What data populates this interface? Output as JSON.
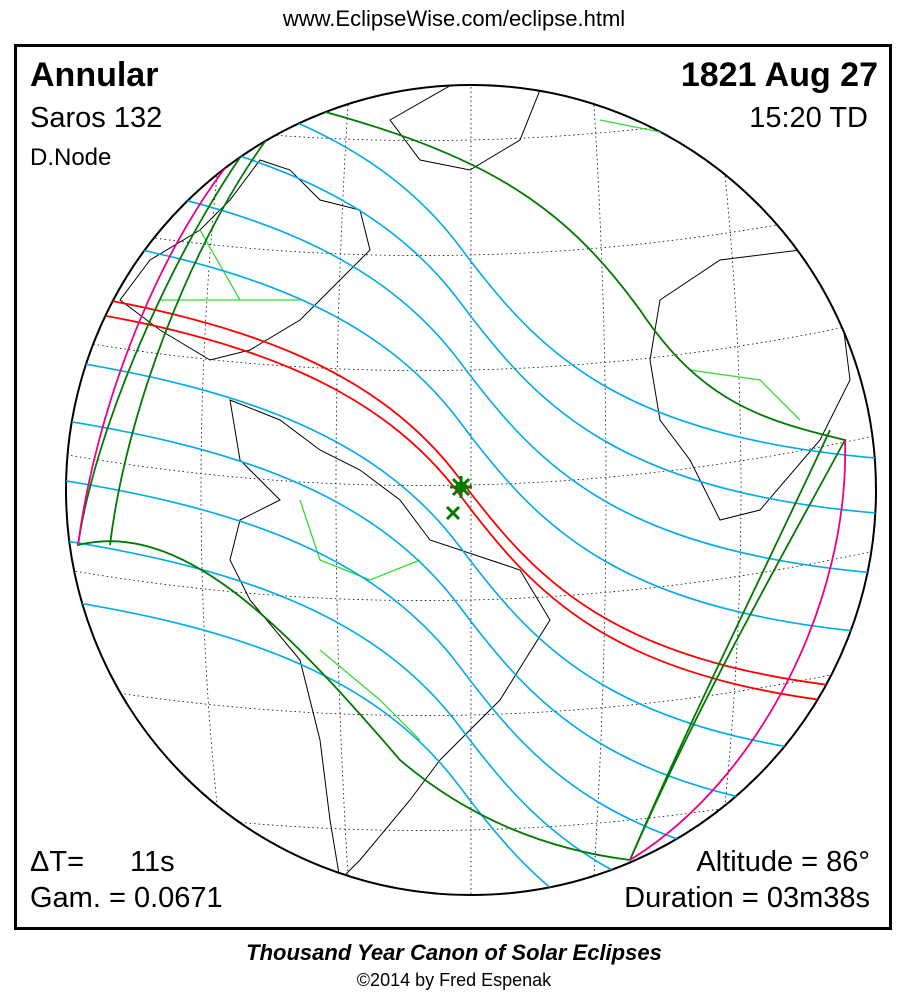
{
  "header": {
    "url": "www.EclipseWise.com/eclipse.html"
  },
  "eclipse": {
    "type": "Annular",
    "saros": "Saros 132",
    "node": "D.Node",
    "date": "1821 Aug 27",
    "time": "15:20 TD",
    "delta_t_label": "ΔT=",
    "delta_t_value": "11s",
    "gamma": "Gam. = 0.0671",
    "altitude": "Altitude = 86°",
    "duration": "Duration = 03m38s"
  },
  "map": {
    "colors": {
      "central_path": "#ff0000",
      "penumbral_lines": "#00aaee",
      "penumbral_limits": "#007a00",
      "borders": "#33dd33",
      "rise_set": "#ee0088"
    },
    "greatest_eclipse_icon": "star-marker",
    "greatest_duration_icon": "x-marker"
  },
  "footer": {
    "title": "Thousand Year Canon of Solar Eclipses",
    "copyright": "©2014 by Fred Espenak"
  }
}
